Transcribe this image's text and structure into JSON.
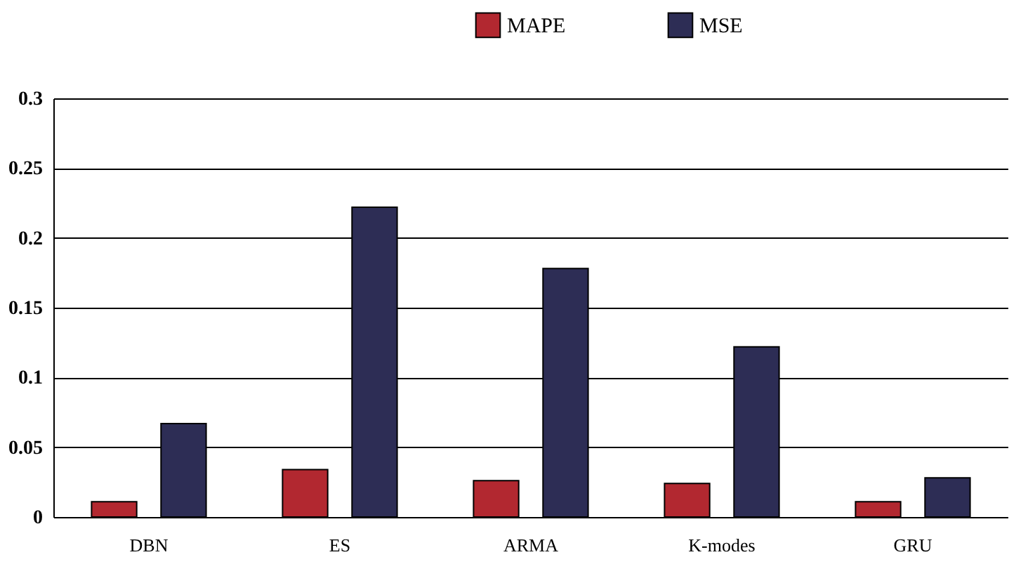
{
  "chart_data": {
    "type": "bar",
    "categories": [
      "DBN",
      "ES",
      "ARMA",
      "K-modes",
      "GRU"
    ],
    "series": [
      {
        "name": "MAPE",
        "color": "#b22830",
        "values": [
          0.011,
          0.034,
          0.026,
          0.024,
          0.011
        ]
      },
      {
        "name": "MSE",
        "color": "#2d2d55",
        "values": [
          0.067,
          0.222,
          0.178,
          0.122,
          0.028
        ]
      }
    ],
    "ylim": [
      0,
      0.3
    ],
    "yticks": [
      0,
      0.05,
      0.1,
      0.15,
      0.2,
      0.25,
      0.3
    ],
    "grid": "y",
    "legend": "top"
  }
}
